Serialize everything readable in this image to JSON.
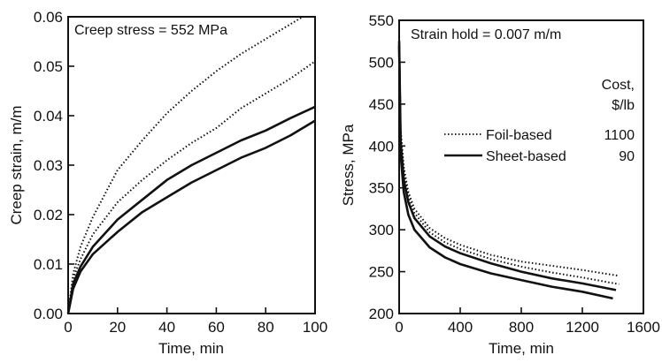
{
  "chart_data": [
    {
      "type": "line",
      "annotation": "Creep stress = 552 MPa",
      "xlabel": "Time, min",
      "ylabel": "Creep strain, m/m",
      "xlim": [
        0,
        100
      ],
      "ylim": [
        0,
        0.06
      ],
      "xticks": [
        "0",
        "20",
        "40",
        "60",
        "80",
        "100"
      ],
      "yticks": [
        "0.00",
        "0.01",
        "0.02",
        "0.03",
        "0.04",
        "0.05",
        "0.06"
      ],
      "grid": false,
      "series": [
        {
          "style": "dotted",
          "x": [
            0,
            2,
            5,
            10,
            20,
            30,
            40,
            50,
            60,
            70,
            80,
            90,
            95
          ],
          "y": [
            0,
            0.008,
            0.0135,
            0.0195,
            0.029,
            0.035,
            0.0405,
            0.045,
            0.049,
            0.0525,
            0.0555,
            0.0585,
            0.06
          ]
        },
        {
          "style": "dotted",
          "x": [
            0,
            2,
            5,
            10,
            20,
            30,
            40,
            50,
            60,
            70,
            80,
            90,
            100
          ],
          "y": [
            0,
            0.007,
            0.011,
            0.016,
            0.0225,
            0.027,
            0.031,
            0.0345,
            0.0375,
            0.0415,
            0.0445,
            0.0475,
            0.051
          ]
        },
        {
          "style": "solid",
          "x": [
            0,
            2,
            5,
            10,
            20,
            30,
            40,
            50,
            60,
            70,
            80,
            90,
            100
          ],
          "y": [
            0,
            0.006,
            0.0095,
            0.0135,
            0.019,
            0.023,
            0.027,
            0.03,
            0.0325,
            0.035,
            0.037,
            0.0395,
            0.0418
          ]
        },
        {
          "style": "solid",
          "x": [
            0,
            2,
            5,
            10,
            20,
            30,
            40,
            50,
            60,
            70,
            80,
            90,
            100
          ],
          "y": [
            0,
            0.005,
            0.0085,
            0.012,
            0.0165,
            0.0205,
            0.0235,
            0.0265,
            0.029,
            0.0315,
            0.0335,
            0.036,
            0.039
          ]
        }
      ]
    },
    {
      "type": "line",
      "annotation": "Strain hold = 0.007 m/m",
      "xlabel": "Time, min",
      "ylabel": "Stress, MPa",
      "xlim": [
        0,
        1600
      ],
      "ylim": [
        200,
        550
      ],
      "xticks": [
        "0",
        "400",
        "800",
        "1200",
        "1600"
      ],
      "yticks": [
        "200",
        "250",
        "300",
        "350",
        "400",
        "450",
        "500",
        "550"
      ],
      "grid": false,
      "legend": {
        "placement": "right",
        "header": [
          "Cost,",
          "$/lb"
        ],
        "entries": [
          {
            "label": "Foil-based",
            "cost": "1100",
            "style": "dotted"
          },
          {
            "label": "Sheet-based",
            "cost": "90",
            "style": "solid"
          }
        ]
      },
      "series": [
        {
          "style": "dotted",
          "x": [
            0,
            10,
            30,
            60,
            100,
            200,
            300,
            400,
            600,
            800,
            1000,
            1200,
            1440
          ],
          "y": [
            535,
            420,
            375,
            345,
            325,
            302,
            290,
            282,
            270,
            262,
            257,
            252,
            245
          ]
        },
        {
          "style": "dotted",
          "x": [
            0,
            10,
            30,
            60,
            100,
            200,
            300,
            400,
            600,
            800,
            1000,
            1200,
            1440
          ],
          "y": [
            530,
            412,
            368,
            340,
            320,
            297,
            285,
            277,
            265,
            256,
            249,
            243,
            235
          ]
        },
        {
          "style": "solid",
          "x": [
            0,
            10,
            30,
            60,
            100,
            200,
            300,
            400,
            600,
            800,
            1000,
            1200,
            1420
          ],
          "y": [
            525,
            405,
            360,
            333,
            314,
            292,
            280,
            272,
            260,
            250,
            242,
            236,
            228
          ]
        },
        {
          "style": "solid",
          "x": [
            0,
            10,
            30,
            60,
            100,
            200,
            300,
            400,
            600,
            800,
            1000,
            1200,
            1400
          ],
          "y": [
            520,
            390,
            345,
            318,
            300,
            279,
            267,
            259,
            248,
            240,
            232,
            226,
            218
          ]
        }
      ]
    }
  ]
}
